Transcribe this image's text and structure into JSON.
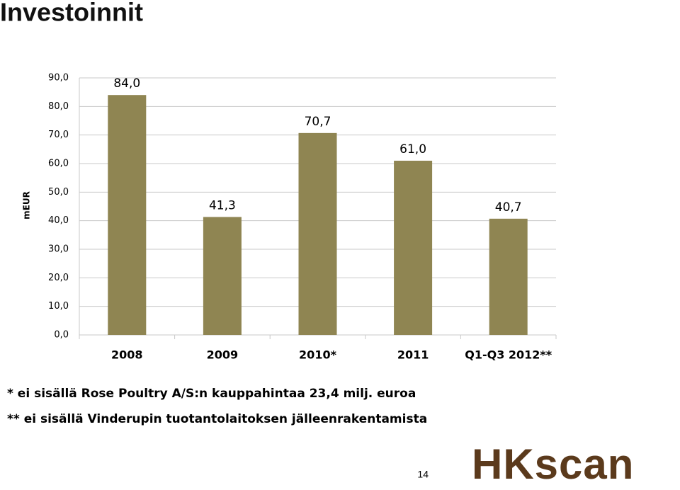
{
  "chart_data": {
    "type": "bar",
    "title": "Investoinnit",
    "y_label": "mEUR",
    "categories": [
      "2008",
      "2009",
      "2010*",
      "2011",
      "Q1-Q3 2012**"
    ],
    "values": [
      84.0,
      41.3,
      70.7,
      61.0,
      40.7
    ],
    "value_labels": [
      "84,0",
      "41,3",
      "70,7",
      "61,0",
      "40,7"
    ],
    "color": "#8f8552",
    "ylim": [
      0,
      90
    ],
    "yticks": [
      {
        "value": 0,
        "label": "0,0"
      },
      {
        "value": 10,
        "label": "10,0"
      },
      {
        "value": 20,
        "label": "20,0"
      },
      {
        "value": 30,
        "label": "30,0"
      },
      {
        "value": 40,
        "label": "40,0"
      },
      {
        "value": 50,
        "label": "50,0"
      },
      {
        "value": 60,
        "label": "60,0"
      },
      {
        "value": 70,
        "label": "70,0"
      },
      {
        "value": 80,
        "label": "80,0"
      },
      {
        "value": 90,
        "label": "90,0"
      }
    ],
    "grid": true,
    "notes": [
      "* ei sisällä Rose Poultry A/S:n kauppahintaa 23,4 milj. euroa",
      "** ei sisällä Vinderupin tuotantolaitoksen jälleenrakentamista"
    ]
  },
  "page_number": "14",
  "logo": "HKscan"
}
